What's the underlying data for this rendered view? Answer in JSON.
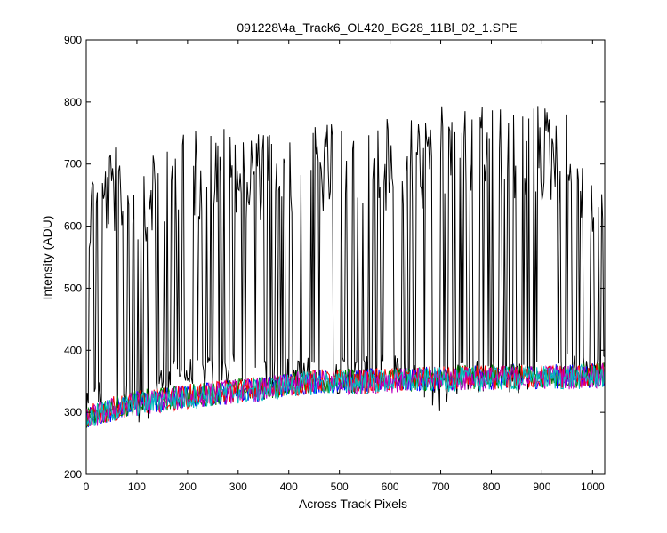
{
  "chart_data": {
    "type": "line",
    "title": "091228\\4a_Track6_OL420_BG28_11Bl_02_1.SPE",
    "xlabel": "Across Track Pixels",
    "ylabel": "Intensity (ADU)",
    "xlim": [
      0,
      1024
    ],
    "ylim": [
      200,
      900
    ],
    "x_ticks": [
      0,
      100,
      200,
      300,
      400,
      500,
      600,
      700,
      800,
      900,
      1000
    ],
    "y_ticks": [
      200,
      300,
      400,
      500,
      600,
      700,
      800,
      900
    ],
    "grid": false,
    "legend": "none",
    "x_points": [
      0,
      50,
      100,
      150,
      200,
      250,
      300,
      350,
      400,
      450,
      500,
      550,
      600,
      650,
      700,
      750,
      800,
      850,
      900,
      950,
      1024
    ],
    "series": [
      {
        "color": "#000000",
        "upper_envelope": [
          690,
          730,
          730,
          735,
          755,
          765,
          760,
          755,
          770,
          760,
          775,
          770,
          775,
          780,
          800,
          795,
          790,
          805,
          800,
          785,
          640
        ],
        "lower_envelope": [
          270,
          320,
          265,
          320,
          330,
          330,
          335,
          330,
          330,
          330,
          330,
          330,
          335,
          330,
          300,
          330,
          330,
          330,
          330,
          335,
          340
        ]
      },
      {
        "color": "#0000ff",
        "values": [
          290,
          305,
          315,
          320,
          325,
          330,
          335,
          338,
          345,
          350,
          350,
          350,
          352,
          352,
          355,
          355,
          356,
          357,
          358,
          358,
          360
        ]
      },
      {
        "color": "#008000",
        "values": [
          292,
          306,
          316,
          321,
          326,
          331,
          336,
          339,
          346,
          351,
          351,
          351,
          353,
          353,
          356,
          356,
          357,
          358,
          359,
          359,
          361
        ]
      },
      {
        "color": "#ff0000",
        "values": [
          291,
          305,
          315,
          320,
          326,
          331,
          335,
          338,
          345,
          350,
          350,
          350,
          352,
          353,
          355,
          355,
          356,
          357,
          358,
          358,
          360
        ]
      },
      {
        "color": "#bf00bf",
        "values": [
          290,
          304,
          314,
          319,
          325,
          330,
          334,
          337,
          344,
          349,
          349,
          349,
          351,
          352,
          354,
          354,
          355,
          356,
          357,
          357,
          359
        ]
      },
      {
        "color": "#00bfbf",
        "values": [
          289,
          303,
          313,
          318,
          324,
          329,
          333,
          336,
          343,
          348,
          348,
          348,
          350,
          351,
          353,
          353,
          354,
          355,
          356,
          356,
          358
        ]
      }
    ]
  }
}
